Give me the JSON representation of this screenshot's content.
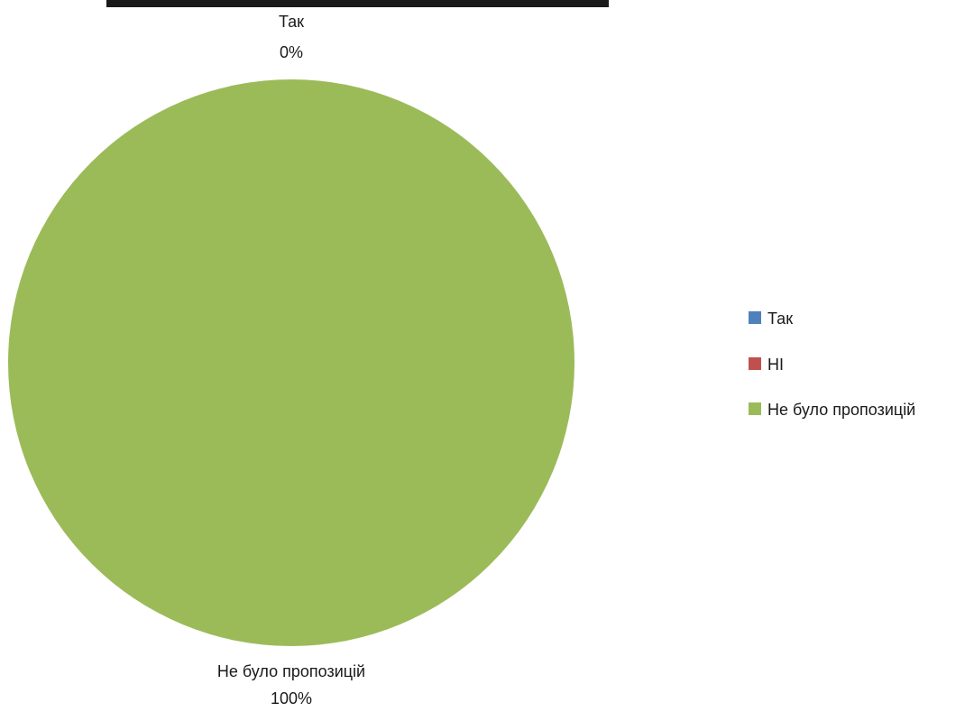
{
  "chart_data": {
    "type": "pie",
    "categories": [
      "Так",
      "НІ",
      "Не було пропозицій"
    ],
    "values": [
      0,
      0,
      100
    ],
    "colors": [
      "#4f81bd",
      "#c0504d",
      "#9bbb59"
    ],
    "data_labels": [
      {
        "category": "Так",
        "percent": "0%"
      },
      {
        "category": "Не було пропозицій",
        "percent": "100%"
      }
    ],
    "legend": {
      "placement": "right",
      "entries": [
        "Так",
        "НІ",
        "Не було пропозицій"
      ]
    },
    "title": "",
    "start_angle": "top"
  }
}
